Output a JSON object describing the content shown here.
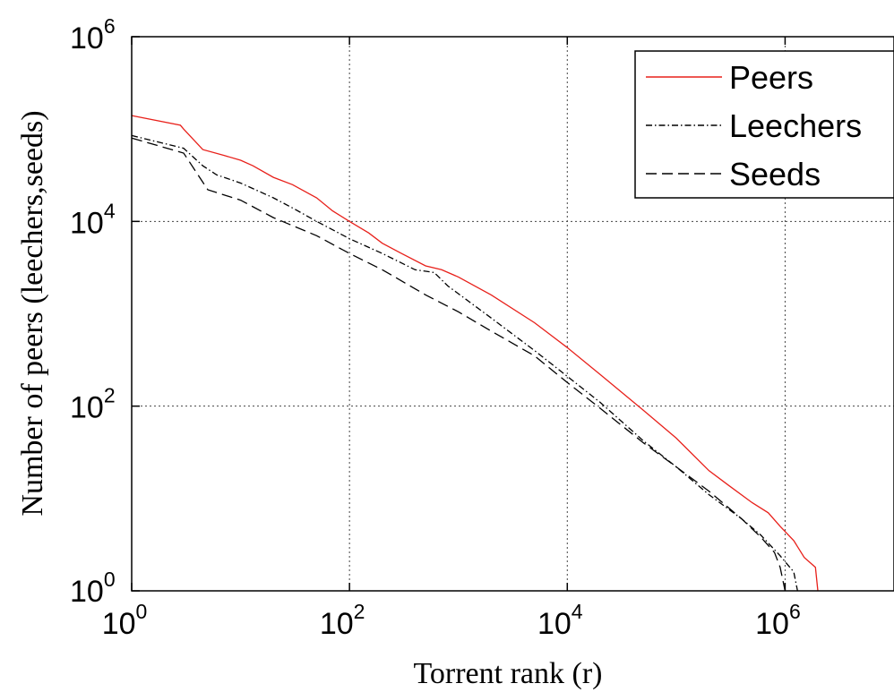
{
  "chart_data": {
    "type": "line",
    "title": "",
    "xlabel": "Torrent rank (r)",
    "ylabel": "Number of peers (leechers,seeds)",
    "xscale": "log",
    "yscale": "log",
    "xlim": [
      1,
      10000000
    ],
    "ylim": [
      1,
      1000000
    ],
    "grid": true,
    "legend_position": "top-right",
    "x_ticks": [
      {
        "base": "10",
        "exp": "0",
        "value": 1
      },
      {
        "base": "10",
        "exp": "2",
        "value": 100
      },
      {
        "base": "10",
        "exp": "4",
        "value": 10000
      },
      {
        "base": "10",
        "exp": "6",
        "value": 1000000
      }
    ],
    "y_ticks": [
      {
        "base": "10",
        "exp": "0",
        "value": 1
      },
      {
        "base": "10",
        "exp": "2",
        "value": 100
      },
      {
        "base": "10",
        "exp": "4",
        "value": 10000
      },
      {
        "base": "10",
        "exp": "6",
        "value": 1000000
      }
    ],
    "series": [
      {
        "name": "Peers",
        "color": "#e8201a",
        "dash": "solid",
        "points": [
          [
            1,
            140000
          ],
          [
            2.8,
            110000
          ],
          [
            3,
            100000
          ],
          [
            4.5,
            60000
          ],
          [
            7,
            52000
          ],
          [
            10,
            46000
          ],
          [
            13,
            40000
          ],
          [
            20,
            30000
          ],
          [
            30,
            25000
          ],
          [
            50,
            18000
          ],
          [
            70,
            13000
          ],
          [
            100,
            10000
          ],
          [
            150,
            7500
          ],
          [
            200,
            5800
          ],
          [
            300,
            4500
          ],
          [
            500,
            3300
          ],
          [
            700,
            3000
          ],
          [
            1000,
            2500
          ],
          [
            2000,
            1600
          ],
          [
            5000,
            800
          ],
          [
            10000,
            430
          ],
          [
            20000,
            220
          ],
          [
            50000,
            90
          ],
          [
            100000,
            45
          ],
          [
            200000,
            20
          ],
          [
            300000,
            14
          ],
          [
            500000,
            9
          ],
          [
            700000,
            7
          ],
          [
            900000,
            5
          ],
          [
            1200000,
            3.5
          ],
          [
            1500000,
            2.3
          ],
          [
            1900000,
            1.8
          ],
          [
            2000000,
            1
          ]
        ]
      },
      {
        "name": "Leechers",
        "color": "#000000",
        "dash": "dashdot",
        "points": [
          [
            1,
            85000
          ],
          [
            3,
            62000
          ],
          [
            4.5,
            40000
          ],
          [
            6,
            32000
          ],
          [
            10,
            26000
          ],
          [
            15,
            21000
          ],
          [
            20,
            18000
          ],
          [
            30,
            14000
          ],
          [
            50,
            10000
          ],
          [
            100,
            6500
          ],
          [
            200,
            4500
          ],
          [
            400,
            3000
          ],
          [
            600,
            2800
          ],
          [
            800,
            2000
          ],
          [
            1000,
            1650
          ],
          [
            2000,
            900
          ],
          [
            5000,
            400
          ],
          [
            10000,
            210
          ],
          [
            20000,
            110
          ],
          [
            50000,
            42
          ],
          [
            100000,
            22
          ],
          [
            200000,
            11
          ],
          [
            400000,
            6
          ],
          [
            600000,
            4
          ],
          [
            900000,
            2.4
          ],
          [
            1200000,
            1.6
          ],
          [
            1300000,
            1
          ]
        ]
      },
      {
        "name": "Seeds",
        "color": "#000000",
        "dash": "dashed",
        "points": [
          [
            1,
            80000
          ],
          [
            3,
            55000
          ],
          [
            5,
            22000
          ],
          [
            10,
            17000
          ],
          [
            20,
            11000
          ],
          [
            50,
            7000
          ],
          [
            100,
            4500
          ],
          [
            200,
            3000
          ],
          [
            500,
            1600
          ],
          [
            1000,
            1050
          ],
          [
            2000,
            650
          ],
          [
            5000,
            350
          ],
          [
            10000,
            180
          ],
          [
            20000,
            95
          ],
          [
            50000,
            40
          ],
          [
            100000,
            22
          ],
          [
            200000,
            12
          ],
          [
            400000,
            6
          ],
          [
            600000,
            3.8
          ],
          [
            800000,
            2.6
          ],
          [
            900000,
            1.8
          ],
          [
            1000000,
            1
          ]
        ]
      }
    ]
  }
}
